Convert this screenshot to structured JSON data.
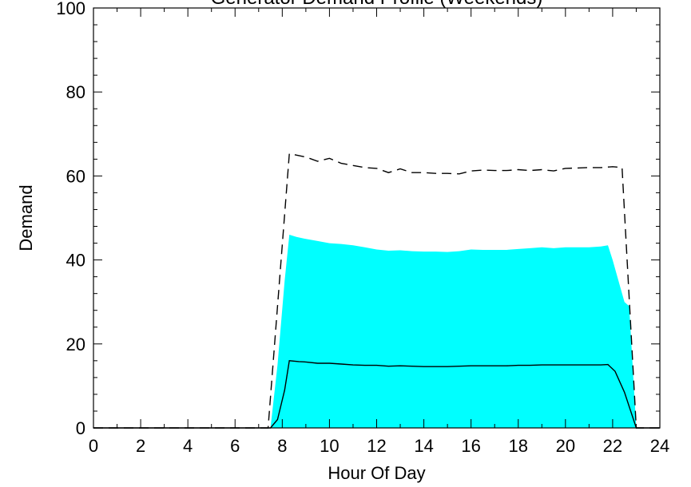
{
  "chart_data": {
    "type": "area",
    "title": "Generator Demand Profile (Weekends)",
    "xlabel": "Hour Of Day",
    "ylabel": "Demand",
    "xlim": [
      0,
      24
    ],
    "ylim": [
      0,
      100
    ],
    "xticks": [
      0,
      2,
      4,
      6,
      8,
      10,
      12,
      14,
      16,
      18,
      20,
      22,
      24
    ],
    "yticks": [
      0,
      20,
      40,
      60,
      80,
      100
    ],
    "grid": false,
    "legend": "none",
    "series": [
      {
        "style": "filled-area",
        "color": "#00FFFF",
        "x": [
          0,
          7.5,
          7.8,
          8.1,
          8.3,
          8.6,
          9.0,
          9.5,
          10.0,
          10.5,
          11.0,
          11.5,
          12.0,
          12.5,
          13.0,
          13.5,
          14.0,
          14.5,
          15.0,
          15.5,
          16.0,
          16.5,
          17.0,
          17.5,
          18.0,
          18.5,
          19.0,
          19.5,
          20.0,
          20.5,
          21.0,
          21.5,
          21.8,
          22.0,
          22.2,
          22.5,
          22.7,
          23.0,
          24
        ],
        "values": [
          0,
          0,
          15,
          35,
          46,
          45.5,
          45,
          44.5,
          44,
          43.8,
          43.5,
          43,
          42.5,
          42.2,
          42.3,
          42.1,
          42.0,
          42.0,
          41.9,
          42.1,
          42.5,
          42.4,
          42.4,
          42.4,
          42.6,
          42.8,
          43.0,
          42.8,
          43.0,
          43.0,
          43.0,
          43.2,
          43.5,
          40,
          36,
          30,
          29,
          0,
          0
        ]
      },
      {
        "style": "solid-line",
        "color": "#000000",
        "x": [
          0,
          7.5,
          7.8,
          8.1,
          8.3,
          8.7,
          9.0,
          9.5,
          10.0,
          10.5,
          11.0,
          11.5,
          12.0,
          12.5,
          13.0,
          13.5,
          14.0,
          14.5,
          15.0,
          15.5,
          16.0,
          16.5,
          17.0,
          17.5,
          18.0,
          18.5,
          19.0,
          19.5,
          20.0,
          20.5,
          21.0,
          21.5,
          21.8,
          22.1,
          22.5,
          23.0,
          24
        ],
        "values": [
          0,
          0,
          2,
          9,
          16,
          15.8,
          15.7,
          15.4,
          15.4,
          15.2,
          15.0,
          14.9,
          14.9,
          14.7,
          14.8,
          14.7,
          14.6,
          14.6,
          14.6,
          14.7,
          14.8,
          14.8,
          14.8,
          14.8,
          14.9,
          14.9,
          15.0,
          15.0,
          15.0,
          15.0,
          15.0,
          15.0,
          15.1,
          13.5,
          8.5,
          0,
          0
        ]
      },
      {
        "style": "dashed-line",
        "color": "#000000",
        "x": [
          0,
          7.4,
          8.3,
          9.0,
          9.5,
          10.0,
          10.5,
          11.0,
          11.5,
          12.0,
          12.5,
          13.0,
          13.5,
          14.0,
          14.5,
          15.0,
          15.5,
          16.0,
          16.5,
          17.0,
          17.5,
          18.0,
          18.5,
          19.0,
          19.5,
          20.0,
          20.5,
          21.0,
          21.5,
          22.0,
          22.4,
          23.0,
          24
        ],
        "values": [
          0,
          0,
          65.3,
          64.5,
          63.5,
          64.2,
          63.0,
          62.5,
          62.0,
          61.8,
          60.8,
          61.7,
          60.8,
          60.8,
          60.6,
          60.6,
          60.5,
          61.2,
          61.4,
          61.3,
          61.3,
          61.5,
          61.3,
          61.5,
          61.2,
          61.8,
          61.9,
          62.0,
          62.0,
          62.2,
          62.0,
          0,
          0
        ]
      }
    ]
  }
}
